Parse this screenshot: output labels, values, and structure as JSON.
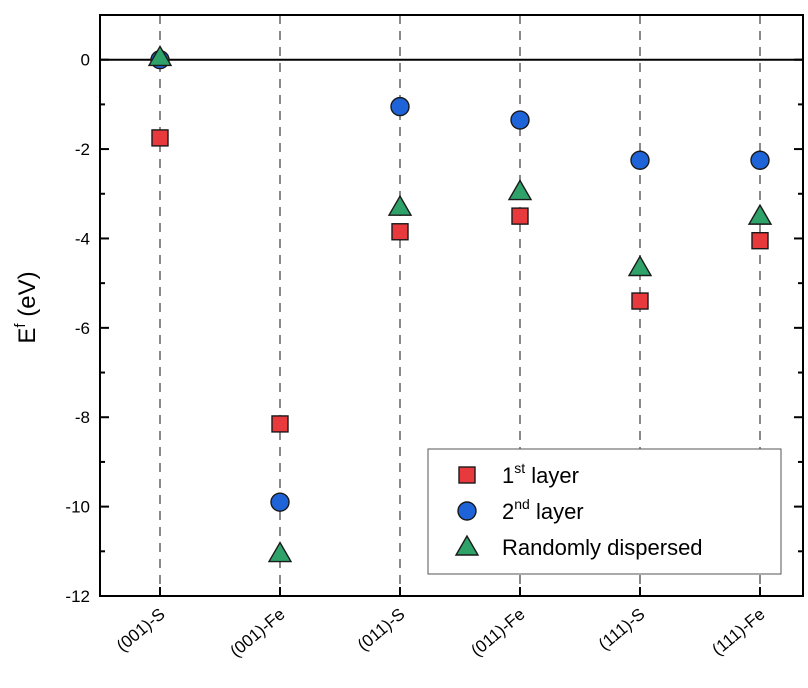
{
  "chart_data": {
    "type": "scatter",
    "categories": [
      "(001)-S",
      "(001)-Fe",
      "(011)-S",
      "(011)-Fe",
      "(111)-S",
      "(111)-Fe"
    ],
    "ylabel": {
      "main": "E",
      "sup": "f",
      "rest": " (eV)"
    },
    "ylim": [
      -12,
      1
    ],
    "yticks": [
      0,
      -2,
      -4,
      -6,
      -8,
      -10,
      -12
    ],
    "reference_line_y": 0,
    "series": [
      {
        "name": {
          "main": "1",
          "sup": "st",
          "rest": " layer"
        },
        "marker": "square",
        "color": "#e8393c",
        "values": [
          -1.75,
          -8.15,
          -3.85,
          -3.5,
          -5.4,
          -4.05
        ]
      },
      {
        "name": {
          "main": "2",
          "sup": "nd",
          "rest": " layer"
        },
        "marker": "circle",
        "color": "#1f63d8",
        "values": [
          0.0,
          -9.9,
          -1.05,
          -1.35,
          -2.25,
          -2.25
        ]
      },
      {
        "name": {
          "main": "Randomly dispersed",
          "sup": "",
          "rest": ""
        },
        "marker": "triangle",
        "color": "#2ea268",
        "values": [
          0.05,
          -11.05,
          -3.3,
          -2.95,
          -4.65,
          -3.5
        ]
      }
    ],
    "legend_position": "bottom-right",
    "grid": "vertical dashed lines at categories"
  }
}
